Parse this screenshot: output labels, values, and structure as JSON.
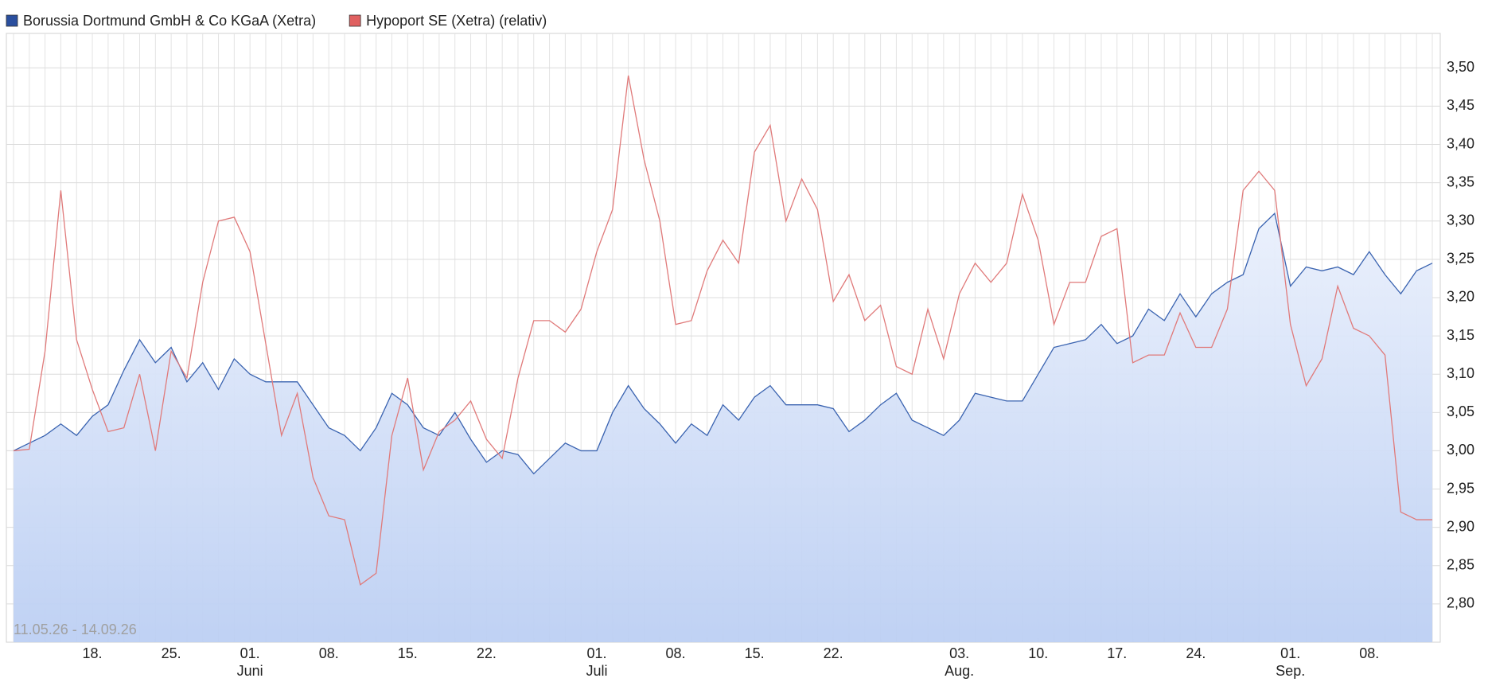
{
  "chart_data": {
    "type": "line",
    "date_range": "11.05.26 - 14.09.26",
    "categories": [
      null,
      null,
      null,
      null,
      null,
      "18.",
      null,
      null,
      null,
      null,
      "25.",
      null,
      null,
      null,
      null,
      "01.",
      null,
      null,
      null,
      null,
      "08.",
      null,
      null,
      null,
      null,
      "15.",
      null,
      null,
      null,
      null,
      "22.",
      null,
      null,
      null,
      null,
      null,
      null,
      "01.",
      null,
      null,
      null,
      null,
      "08.",
      null,
      null,
      null,
      null,
      "15.",
      null,
      null,
      null,
      null,
      "22.",
      null,
      null,
      null,
      null,
      null,
      null,
      null,
      "03.",
      null,
      null,
      null,
      null,
      "10.",
      null,
      null,
      null,
      null,
      "17.",
      null,
      null,
      null,
      null,
      "24.",
      null,
      null,
      null,
      null,
      null,
      "01.",
      null,
      null,
      null,
      null,
      "08.",
      null,
      null,
      null,
      null
    ],
    "months": [
      null,
      null,
      null,
      null,
      null,
      null,
      null,
      null,
      null,
      null,
      null,
      null,
      null,
      null,
      null,
      "Juni",
      null,
      null,
      null,
      null,
      null,
      null,
      null,
      null,
      null,
      null,
      null,
      null,
      null,
      null,
      null,
      null,
      null,
      null,
      null,
      null,
      null,
      "Juli",
      null,
      null,
      null,
      null,
      null,
      null,
      null,
      null,
      null,
      null,
      null,
      null,
      null,
      null,
      null,
      null,
      null,
      null,
      null,
      null,
      null,
      null,
      "Aug.",
      null,
      null,
      null,
      null,
      null,
      null,
      null,
      null,
      null,
      null,
      null,
      null,
      null,
      null,
      null,
      null,
      null,
      null,
      null,
      null,
      "Sep.",
      null,
      null,
      null,
      null,
      null,
      null,
      null,
      null,
      null
    ],
    "series": [
      {
        "name": "Borussia Dortmund GmbH & Co KGaA (Xetra)",
        "color": "#3a63b0",
        "legend_color": "#2a4f9e",
        "area": true,
        "values": [
          3.0,
          3.01,
          3.02,
          3.035,
          3.02,
          3.045,
          3.06,
          3.105,
          3.145,
          3.115,
          3.135,
          3.09,
          3.115,
          3.08,
          3.12,
          3.1,
          3.09,
          3.09,
          3.09,
          3.06,
          3.03,
          3.02,
          3.0,
          3.03,
          3.075,
          3.06,
          3.03,
          3.02,
          3.05,
          3.015,
          2.985,
          3.0,
          2.995,
          2.97,
          2.99,
          3.01,
          3.0,
          3.0,
          3.05,
          3.085,
          3.055,
          3.035,
          3.01,
          3.035,
          3.02,
          3.06,
          3.04,
          3.07,
          3.085,
          3.06,
          3.06,
          3.06,
          3.055,
          3.025,
          3.04,
          3.06,
          3.075,
          3.04,
          3.03,
          3.02,
          3.04,
          3.075,
          3.07,
          3.065,
          3.065,
          3.1,
          3.135,
          3.14,
          3.145,
          3.165,
          3.14,
          3.15,
          3.185,
          3.17,
          3.205,
          3.175,
          3.205,
          3.22,
          3.23,
          3.29,
          3.31,
          3.215,
          3.24,
          3.235,
          3.24,
          3.23,
          3.26,
          3.23,
          3.205,
          3.235,
          3.245
        ]
      },
      {
        "name": "Hypoport SE (Xetra) (relativ)",
        "color": "#e07a7a",
        "legend_color": "#e06060",
        "area": false,
        "values": [
          3.0,
          3.002,
          3.13,
          3.34,
          3.145,
          3.08,
          3.025,
          3.03,
          3.1,
          3.0,
          3.13,
          3.095,
          3.22,
          3.3,
          3.305,
          3.26,
          3.14,
          3.02,
          3.075,
          2.965,
          2.915,
          2.91,
          2.825,
          2.84,
          3.02,
          3.095,
          2.975,
          3.025,
          3.04,
          3.065,
          3.015,
          2.99,
          3.095,
          3.17,
          3.17,
          3.155,
          3.185,
          3.26,
          3.315,
          3.49,
          3.38,
          3.3,
          3.165,
          3.17,
          3.235,
          3.275,
          3.245,
          3.39,
          3.425,
          3.3,
          3.355,
          3.315,
          3.195,
          3.23,
          3.17,
          3.19,
          3.11,
          3.1,
          3.185,
          3.12,
          3.205,
          3.245,
          3.22,
          3.245,
          3.335,
          3.275,
          3.165,
          3.22,
          3.22,
          3.28,
          3.29,
          3.115,
          3.125,
          3.125,
          3.18,
          3.135,
          3.135,
          3.185,
          3.34,
          3.365,
          3.34,
          3.165,
          3.085,
          3.12,
          3.215,
          3.16,
          3.15,
          3.125,
          2.92,
          2.91,
          2.91
        ]
      }
    ],
    "ylim": [
      2.75,
      3.545
    ],
    "yticks": [
      {
        "value": 2.8,
        "label": "2,80"
      },
      {
        "value": 2.85,
        "label": "2,85"
      },
      {
        "value": 2.9,
        "label": "2,90"
      },
      {
        "value": 2.95,
        "label": "2,95"
      },
      {
        "value": 3.0,
        "label": "3,00"
      },
      {
        "value": 3.05,
        "label": "3,05"
      },
      {
        "value": 3.1,
        "label": "3,10"
      },
      {
        "value": 3.15,
        "label": "3,15"
      },
      {
        "value": 3.2,
        "label": "3,20"
      },
      {
        "value": 3.25,
        "label": "3,25"
      },
      {
        "value": 3.3,
        "label": "3,30"
      },
      {
        "value": 3.35,
        "label": "3,35"
      },
      {
        "value": 3.4,
        "label": "3,40"
      },
      {
        "value": 3.45,
        "label": "3,45"
      },
      {
        "value": 3.5,
        "label": "3,50"
      }
    ],
    "grid": true
  }
}
